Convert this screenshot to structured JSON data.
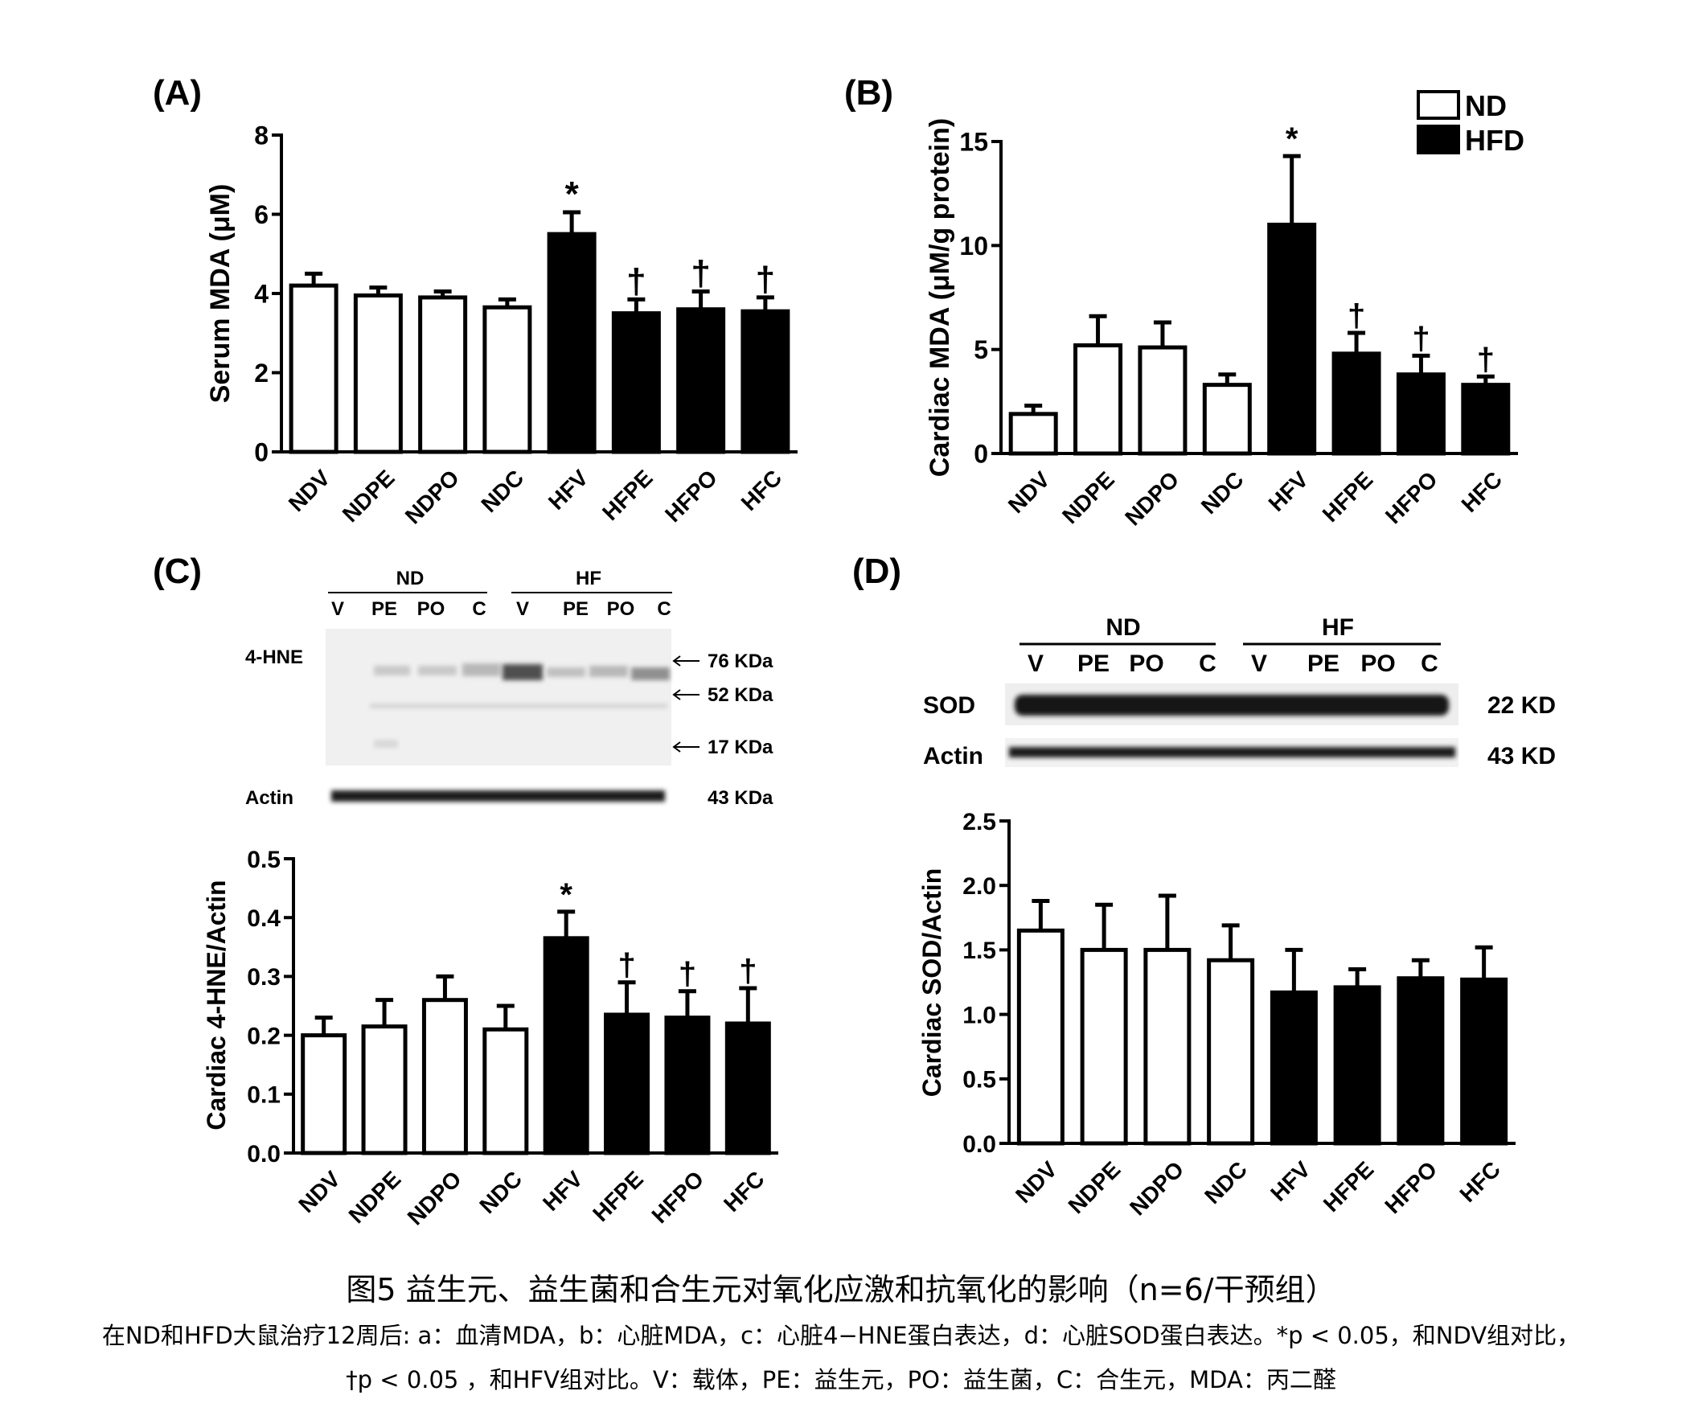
{
  "colors": {
    "ND": "#ffffff",
    "HFD": "#000000",
    "stroke": "#000000"
  },
  "legend": [
    {
      "label": "ND",
      "fill": "#ffffff"
    },
    {
      "label": "HFD",
      "fill": "#000000"
    }
  ],
  "blot_c": {
    "groups": [
      "ND",
      "HF"
    ],
    "lanes": [
      "V",
      "PE",
      "PO",
      "C",
      "V",
      "PE",
      "PO",
      "C"
    ],
    "protein_label": "4-HNE",
    "actin_label": "Actin",
    "markers": [
      "76 KDa",
      "52 KDa",
      "17 KDa"
    ],
    "actin_marker": "43 KDa"
  },
  "blot_d": {
    "groups": [
      "ND",
      "HF"
    ],
    "lanes": [
      "V",
      "PE",
      "PO",
      "C",
      "V",
      "PE",
      "PO",
      "C"
    ],
    "protein_label": "SOD",
    "protein_marker": "22 KD",
    "actin_label": "Actin",
    "actin_marker": "43 KD"
  },
  "chart_data": [
    {
      "panel": "(A)",
      "type": "bar",
      "ylabel": "Serum MDA (μM)",
      "categories": [
        "NDV",
        "NDPE",
        "NDPO",
        "NDC",
        "HFV",
        "HFPE",
        "HFPO",
        "HFC"
      ],
      "values": [
        4.2,
        3.95,
        3.9,
        3.65,
        5.5,
        3.5,
        3.6,
        3.55
      ],
      "errors": [
        0.3,
        0.2,
        0.15,
        0.2,
        0.55,
        0.35,
        0.45,
        0.35
      ],
      "groups": [
        "ND",
        "ND",
        "ND",
        "ND",
        "HFD",
        "HFD",
        "HFD",
        "HFD"
      ],
      "annotations": [
        "",
        "",
        "",
        "",
        "*",
        "†",
        "†",
        "†"
      ],
      "ylim": [
        0,
        8
      ],
      "yticks": [
        "0",
        "2",
        "4",
        "6",
        "8"
      ]
    },
    {
      "panel": "(B)",
      "type": "bar",
      "ylabel": "Cardiac MDA (μM/g protein)",
      "categories": [
        "NDV",
        "NDPE",
        "NDPO",
        "NDC",
        "HFV",
        "HFPE",
        "HFPO",
        "HFC"
      ],
      "values": [
        1.9,
        5.2,
        5.1,
        3.3,
        11.0,
        4.8,
        3.8,
        3.3
      ],
      "errors": [
        0.4,
        1.4,
        1.2,
        0.5,
        3.3,
        1.0,
        0.9,
        0.4
      ],
      "groups": [
        "ND",
        "ND",
        "ND",
        "ND",
        "HFD",
        "HFD",
        "HFD",
        "HFD"
      ],
      "annotations": [
        "",
        "",
        "",
        "",
        "*",
        "†",
        "†",
        "†"
      ],
      "ylim": [
        0,
        15
      ],
      "yticks": [
        "0",
        "5",
        "10",
        "15"
      ]
    },
    {
      "panel": "(C)",
      "type": "bar",
      "ylabel": "Cardiac 4-HNE/Actin",
      "categories": [
        "NDV",
        "NDPE",
        "NDPO",
        "NDC",
        "HFV",
        "HFPE",
        "HFPO",
        "HFC"
      ],
      "values": [
        0.2,
        0.215,
        0.26,
        0.21,
        0.365,
        0.235,
        0.23,
        0.22
      ],
      "errors": [
        0.03,
        0.045,
        0.04,
        0.04,
        0.045,
        0.055,
        0.045,
        0.06
      ],
      "groups": [
        "ND",
        "ND",
        "ND",
        "ND",
        "HFD",
        "HFD",
        "HFD",
        "HFD"
      ],
      "annotations": [
        "",
        "",
        "",
        "",
        "*",
        "†",
        "†",
        "†"
      ],
      "ylim": [
        0,
        0.5
      ],
      "yticks": [
        "0.0",
        "0.1",
        "0.2",
        "0.3",
        "0.4",
        "0.5"
      ]
    },
    {
      "panel": "(D)",
      "type": "bar",
      "ylabel": "Cardiac SOD/Actin",
      "categories": [
        "NDV",
        "NDPE",
        "NDPO",
        "NDC",
        "HFV",
        "HFPE",
        "HFPO",
        "HFC"
      ],
      "values": [
        1.65,
        1.5,
        1.5,
        1.42,
        1.17,
        1.21,
        1.28,
        1.27
      ],
      "errors": [
        0.23,
        0.35,
        0.42,
        0.27,
        0.33,
        0.14,
        0.14,
        0.25
      ],
      "groups": [
        "ND",
        "ND",
        "ND",
        "ND",
        "HFD",
        "HFD",
        "HFD",
        "HFD"
      ],
      "annotations": [
        "",
        "",
        "",
        "",
        "",
        "",
        "",
        ""
      ],
      "ylim": [
        0,
        2.5
      ],
      "yticks": [
        "0.0",
        "0.5",
        "1.0",
        "1.5",
        "2.0",
        "2.5"
      ]
    }
  ],
  "caption": {
    "title": "图5 益生元、益生菌和合生元对氧化应激和抗氧化的影响（n=6/干预组）",
    "line1": "在ND和HFD大鼠治疗12周后: a：血清MDA，b：心脏MDA，c：心脏4−HNE蛋白表达，d：心脏SOD蛋白表达。*p < 0.05，和NDV组对比，",
    "line2": "†p < 0.05 ，和HFV组对比。V：载体，PE：益生元，PO：益生菌，C：合生元，MDA：丙二醛"
  }
}
